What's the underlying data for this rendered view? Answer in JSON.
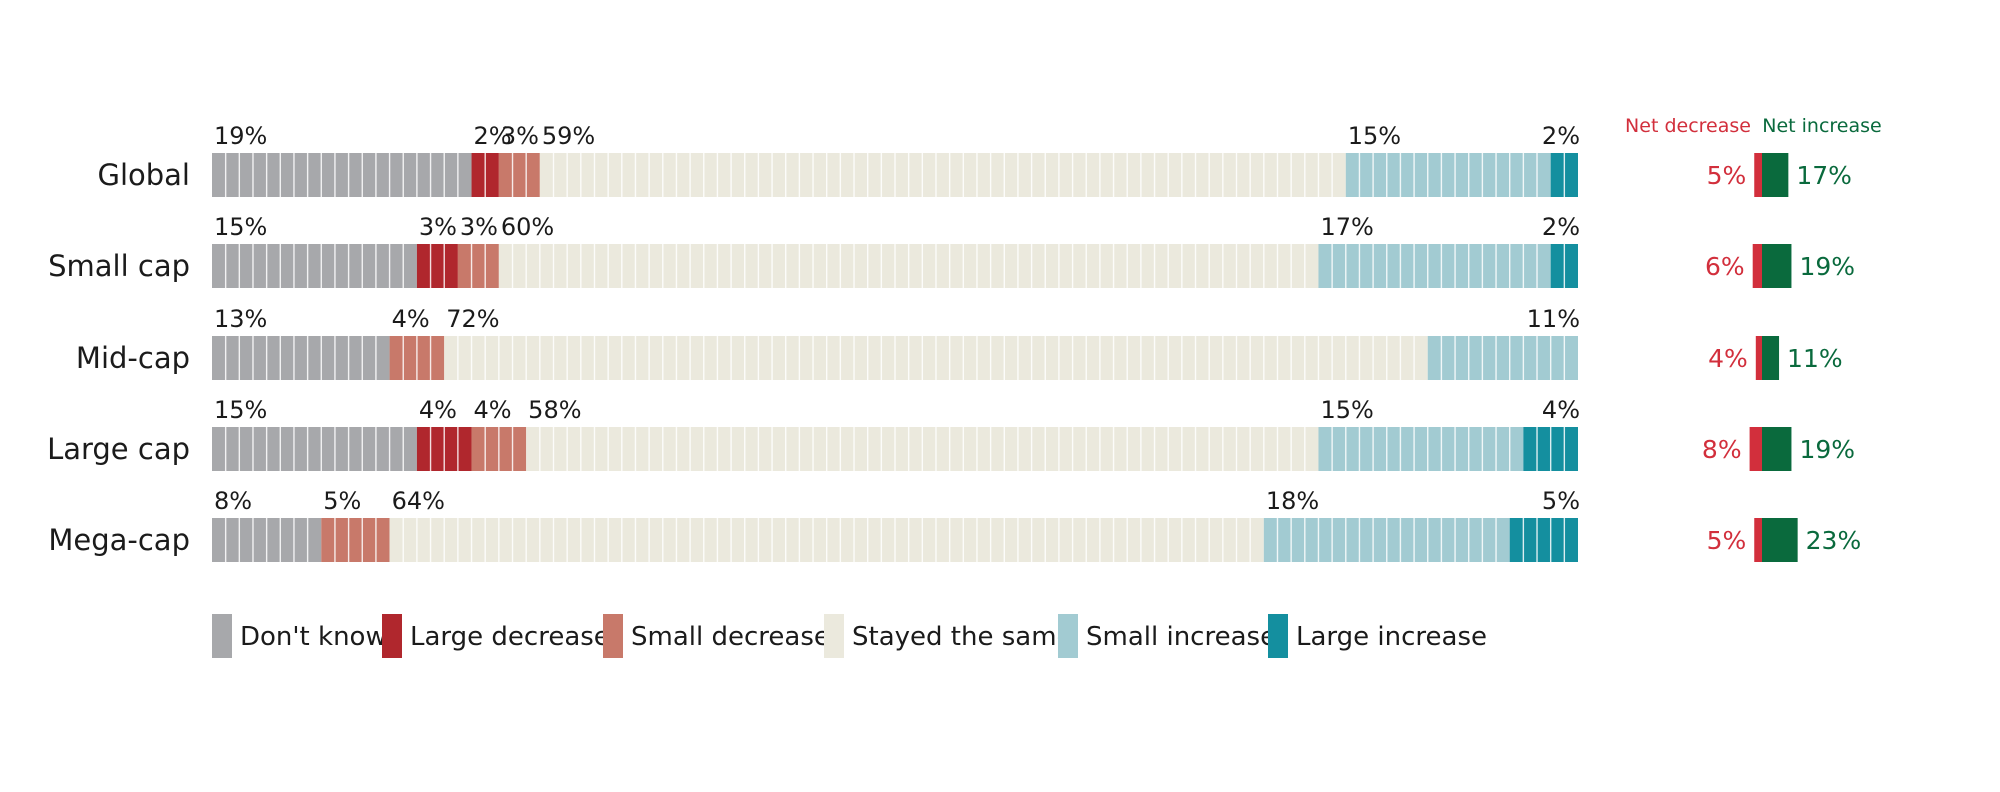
{
  "chart_data": {
    "type": "bar",
    "stacked": true,
    "orientation": "horizontal",
    "unit": "%",
    "categories": [
      "Global",
      "Small cap",
      "Mid-cap",
      "Large cap",
      "Mega-cap"
    ],
    "series": [
      {
        "name": "Don't know",
        "color": "#a7a8ab",
        "values": [
          19,
          15,
          13,
          15,
          8
        ],
        "labels": [
          "19%",
          "15%",
          "13%",
          "15%",
          "8%"
        ]
      },
      {
        "name": "Large decrease",
        "color": "#b0272d",
        "values": [
          2,
          3,
          0,
          4,
          0
        ],
        "labels": [
          "2%",
          "3%",
          "",
          "4%",
          ""
        ]
      },
      {
        "name": "Small decrease",
        "color": "#c8796a",
        "values": [
          3,
          3,
          4,
          4,
          5
        ],
        "labels": [
          "3%",
          "3%",
          "4%",
          "4%",
          "5%"
        ]
      },
      {
        "name": "Stayed the same",
        "color": "#ebe9dd",
        "values": [
          59,
          60,
          72,
          58,
          64
        ],
        "labels": [
          "59%",
          "60%",
          "72%",
          "58%",
          "64%"
        ]
      },
      {
        "name": "Small increase",
        "color": "#a2cbd2",
        "values": [
          15,
          17,
          11,
          15,
          18
        ],
        "labels": [
          "15%",
          "17%",
          "11%",
          "15%",
          "18%"
        ]
      },
      {
        "name": "Large increase",
        "color": "#148f9f",
        "values": [
          2,
          2,
          0,
          4,
          5
        ],
        "labels": [
          "2%",
          "2%",
          "",
          "4%",
          "5%"
        ]
      }
    ],
    "net": {
      "decrease_header": "Net decrease",
      "increase_header": "Net increase",
      "decrease_color": "#d22f3c",
      "increase_color": "#0a6a3d",
      "decrease": [
        5,
        6,
        4,
        8,
        5
      ],
      "increase": [
        17,
        19,
        11,
        19,
        23
      ],
      "decrease_labels": [
        "5%",
        "6%",
        "4%",
        "8%",
        "5%"
      ],
      "increase_labels": [
        "17%",
        "19%",
        "11%",
        "19%",
        "23%"
      ]
    },
    "legend_position": "bottom"
  }
}
